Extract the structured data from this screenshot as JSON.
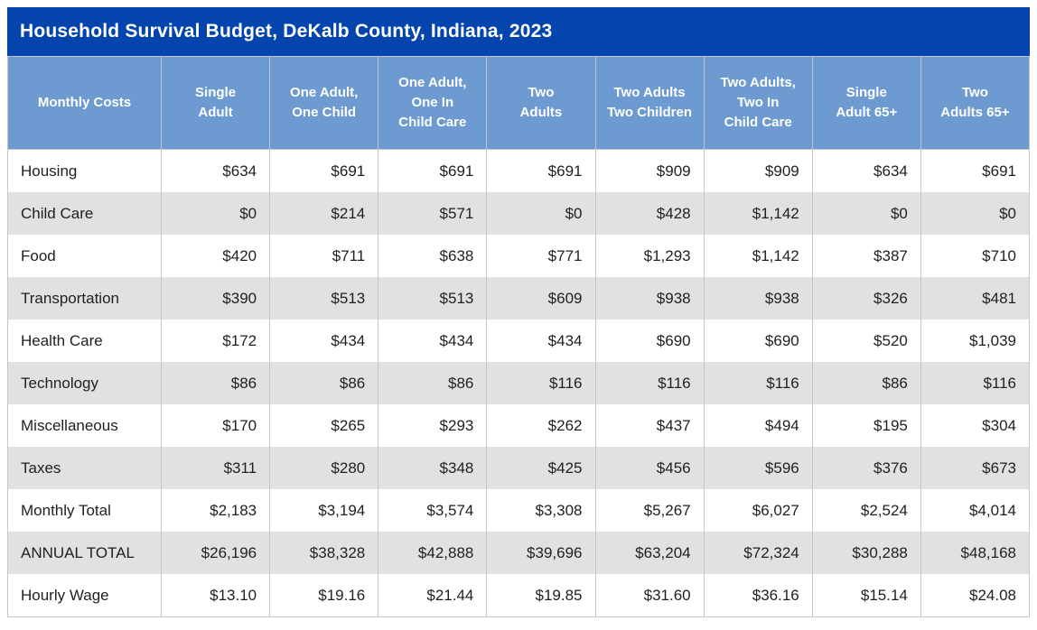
{
  "title": "Household Survival Budget, DeKalb County, Indiana, 2023",
  "colors": {
    "title_bar_bg": "#0344ad",
    "title_text": "#ffffff",
    "header_bg": "#6d9ad0",
    "header_text": "#ffffff",
    "stripe_bg": "#e1e1e1",
    "grid_border": "#c6c6c6",
    "text": "#1f1f1f"
  },
  "header_display": {
    "column_lines": [
      [
        "Monthly Costs"
      ],
      [
        "Single",
        "Adult"
      ],
      [
        "One Adult,",
        "One Child"
      ],
      [
        "One Adult,",
        "One In",
        "Child Care"
      ],
      [
        "Two",
        "Adults"
      ],
      [
        "Two Adults",
        "Two Children"
      ],
      [
        "Two Adults,",
        "Two In",
        "Child Care"
      ],
      [
        "Single",
        "Adult 65+"
      ],
      [
        "Two",
        "Adults 65+"
      ]
    ]
  },
  "chart_data": {
    "type": "table",
    "title": "Household Survival Budget, DeKalb County, Indiana, 2023",
    "columns": [
      "Monthly Costs",
      "Single Adult",
      "One Adult, One Child",
      "One Adult, One In Child Care",
      "Two Adults",
      "Two Adults Two Children",
      "Two Adults, Two In Child Care",
      "Single Adult 65+",
      "Two Adults 65+"
    ],
    "rows": [
      {
        "label": "Housing",
        "values": [
          "$634",
          "$691",
          "$691",
          "$691",
          "$909",
          "$909",
          "$634",
          "$691"
        ]
      },
      {
        "label": "Child Care",
        "values": [
          "$0",
          "$214",
          "$571",
          "$0",
          "$428",
          "$1,142",
          "$0",
          "$0"
        ]
      },
      {
        "label": "Food",
        "values": [
          "$420",
          "$711",
          "$638",
          "$771",
          "$1,293",
          "$1,142",
          "$387",
          "$710"
        ]
      },
      {
        "label": "Transportation",
        "values": [
          "$390",
          "$513",
          "$513",
          "$609",
          "$938",
          "$938",
          "$326",
          "$481"
        ]
      },
      {
        "label": "Health Care",
        "values": [
          "$172",
          "$434",
          "$434",
          "$434",
          "$690",
          "$690",
          "$520",
          "$1,039"
        ]
      },
      {
        "label": "Technology",
        "values": [
          "$86",
          "$86",
          "$86",
          "$116",
          "$116",
          "$116",
          "$86",
          "$116"
        ]
      },
      {
        "label": "Miscellaneous",
        "values": [
          "$170",
          "$265",
          "$293",
          "$262",
          "$437",
          "$494",
          "$195",
          "$304"
        ]
      },
      {
        "label": "Taxes",
        "values": [
          "$311",
          "$280",
          "$348",
          "$425",
          "$456",
          "$596",
          "$376",
          "$673"
        ]
      },
      {
        "label": "Monthly Total",
        "values": [
          "$2,183",
          "$3,194",
          "$3,574",
          "$3,308",
          "$5,267",
          "$6,027",
          "$2,524",
          "$4,014"
        ]
      },
      {
        "label": "ANNUAL TOTAL",
        "values": [
          "$26,196",
          "$38,328",
          "$42,888",
          "$39,696",
          "$63,204",
          "$72,324",
          "$30,288",
          "$48,168"
        ]
      },
      {
        "label": "Hourly Wage",
        "values": [
          "$13.10",
          "$19.16",
          "$21.44",
          "$19.85",
          "$31.60",
          "$36.16",
          "$15.14",
          "$24.08"
        ]
      }
    ]
  }
}
